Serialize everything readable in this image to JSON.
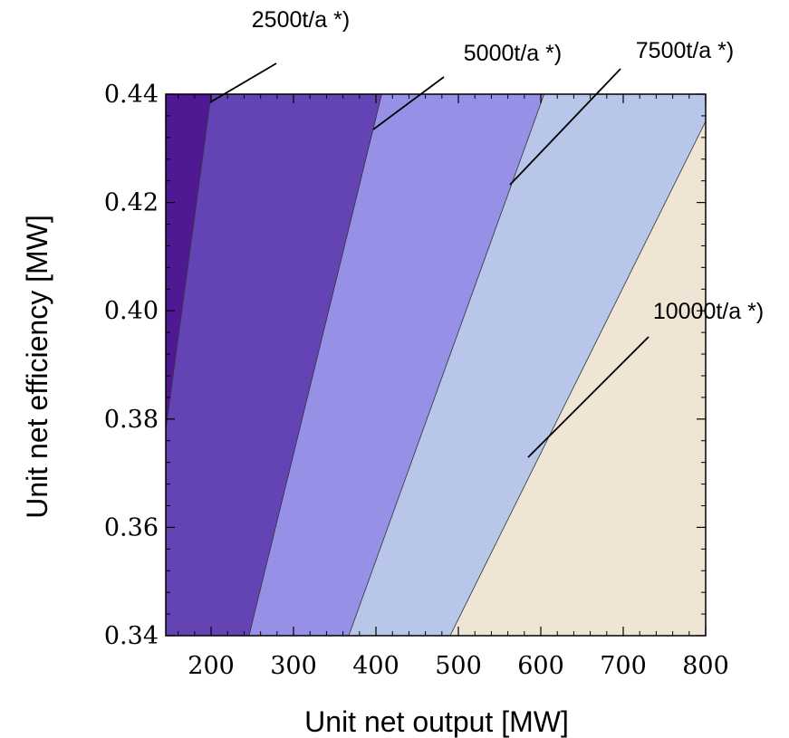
{
  "chart_data": {
    "type": "contour",
    "title": "",
    "xlabel": "Unit net output [MW]",
    "ylabel": "Unit net efficiency [MW]",
    "xlim": [
      145,
      800
    ],
    "ylim": [
      0.34,
      0.44
    ],
    "xticks": [
      "200",
      "300",
      "400",
      "500",
      "600",
      "700",
      "800"
    ],
    "yticks": [
      "0.34",
      "0.36",
      "0.38",
      "0.40",
      "0.42",
      "0.44"
    ],
    "grid": false,
    "contours": [
      {
        "label": "2500t/a *)",
        "x": [
          145,
          200
        ],
        "y": [
          0.378,
          0.44
        ]
      },
      {
        "label": "5000t/a *)",
        "x": [
          246,
          407
        ],
        "y": [
          0.34,
          0.44
        ]
      },
      {
        "label": "7500t/a *)",
        "x": [
          367,
          604
        ],
        "y": [
          0.34,
          0.44
        ]
      },
      {
        "label": "10000t/a *)",
        "x": [
          490,
          800
        ],
        "y": [
          0.34,
          0.435
        ]
      }
    ],
    "region_colors": [
      "#4f1993",
      "#6444b4",
      "#9690e6",
      "#b7c6e9",
      "#efe5d5"
    ]
  }
}
